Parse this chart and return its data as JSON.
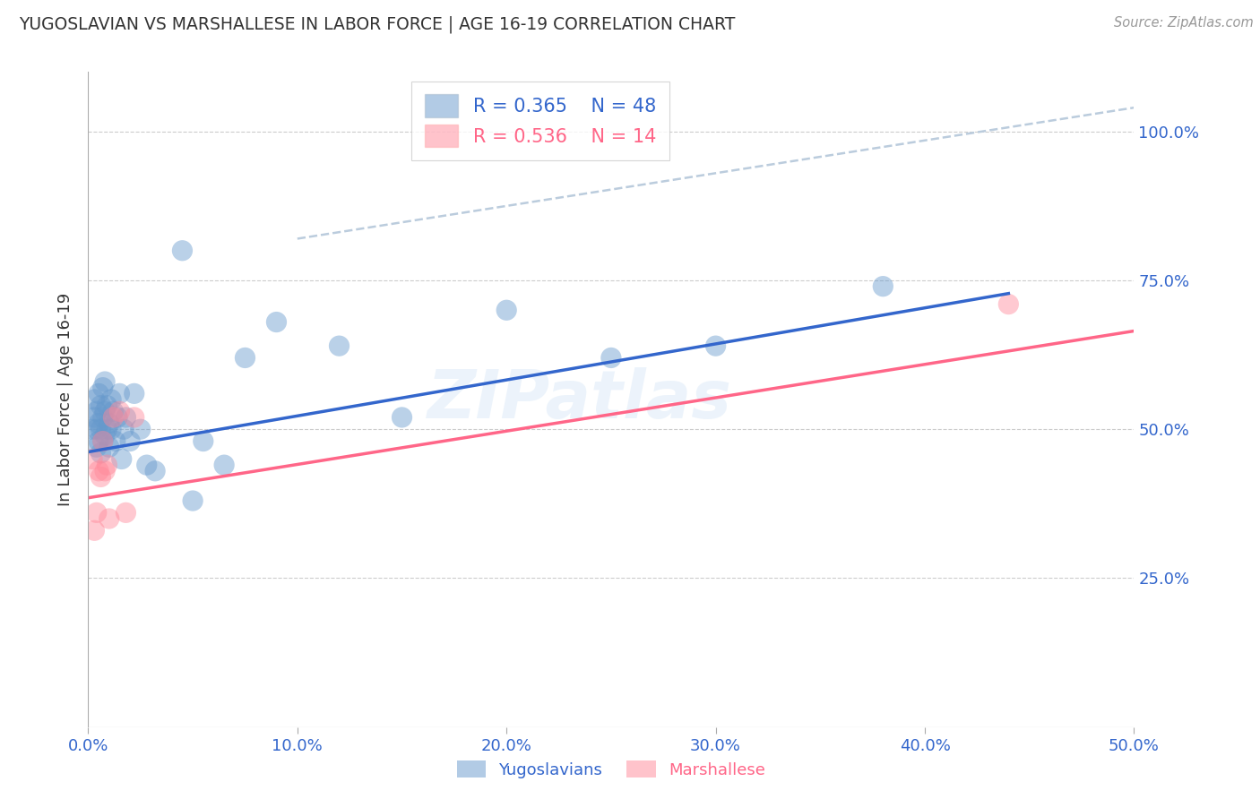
{
  "title": "YUGOSLAVIAN VS MARSHALLESE IN LABOR FORCE | AGE 16-19 CORRELATION CHART",
  "source": "Source: ZipAtlas.com",
  "ylabel": "In Labor Force | Age 16-19",
  "xlim": [
    0.0,
    0.5
  ],
  "ylim": [
    0.0,
    1.1
  ],
  "xtick_labels": [
    "0.0%",
    "10.0%",
    "20.0%",
    "30.0%",
    "40.0%",
    "50.0%"
  ],
  "xtick_vals": [
    0.0,
    0.1,
    0.2,
    0.3,
    0.4,
    0.5
  ],
  "ytick_labels": [
    "25.0%",
    "50.0%",
    "75.0%",
    "100.0%"
  ],
  "ytick_vals": [
    0.25,
    0.5,
    0.75,
    1.0
  ],
  "yugoslavian_color": "#6699CC",
  "marshallese_color": "#FF8899",
  "trend_blue": "#3366CC",
  "trend_pink": "#FF6688",
  "trend_dashed_color": "#BBCCDD",
  "legend_r_blue": "0.365",
  "legend_n_blue": "48",
  "legend_r_pink": "0.536",
  "legend_n_pink": "14",
  "yugoslavian_x": [
    0.002,
    0.003,
    0.003,
    0.004,
    0.004,
    0.004,
    0.005,
    0.005,
    0.005,
    0.006,
    0.006,
    0.006,
    0.007,
    0.007,
    0.007,
    0.008,
    0.008,
    0.008,
    0.009,
    0.009,
    0.01,
    0.01,
    0.011,
    0.011,
    0.012,
    0.013,
    0.014,
    0.015,
    0.016,
    0.017,
    0.018,
    0.02,
    0.022,
    0.025,
    0.028,
    0.032,
    0.05,
    0.055,
    0.065,
    0.075,
    0.09,
    0.12,
    0.15,
    0.2,
    0.25,
    0.3,
    0.38,
    0.045
  ],
  "yugoslavian_y": [
    0.5,
    0.52,
    0.55,
    0.47,
    0.5,
    0.53,
    0.48,
    0.51,
    0.56,
    0.46,
    0.5,
    0.54,
    0.48,
    0.52,
    0.57,
    0.49,
    0.53,
    0.58,
    0.5,
    0.54,
    0.47,
    0.51,
    0.5,
    0.55,
    0.53,
    0.48,
    0.52,
    0.56,
    0.45,
    0.5,
    0.52,
    0.48,
    0.56,
    0.5,
    0.44,
    0.43,
    0.38,
    0.48,
    0.44,
    0.62,
    0.68,
    0.64,
    0.52,
    0.7,
    0.62,
    0.64,
    0.74,
    0.8
  ],
  "marshallese_x": [
    0.002,
    0.003,
    0.004,
    0.005,
    0.006,
    0.007,
    0.008,
    0.009,
    0.01,
    0.012,
    0.015,
    0.018,
    0.022,
    0.44
  ],
  "marshallese_y": [
    0.45,
    0.33,
    0.36,
    0.43,
    0.42,
    0.48,
    0.43,
    0.44,
    0.35,
    0.52,
    0.53,
    0.36,
    0.52,
    0.71
  ],
  "blue_trend_x": [
    0.0,
    0.44
  ],
  "blue_trend_y": [
    0.462,
    0.728
  ],
  "pink_trend_x": [
    0.0,
    0.5
  ],
  "pink_trend_y": [
    0.385,
    0.665
  ],
  "dashed_trend_x": [
    0.1,
    0.5
  ],
  "dashed_trend_y": [
    0.82,
    1.04
  ],
  "bottom_legend_labels": [
    "Yugoslavians",
    "Marshallese"
  ]
}
